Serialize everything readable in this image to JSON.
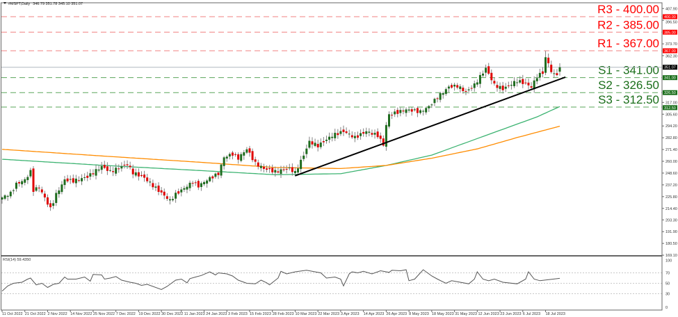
{
  "header": {
    "symbol": "#MSFT,Daily",
    "ohlc": "346.79 351.78 345.10 351.07"
  },
  "chart_data": [
    {
      "type": "candlestick",
      "timeframe": "Daily",
      "ylim": [
        169.1,
        407.9
      ],
      "y_tick_labels": [
        "407.90",
        "396.50",
        "373.70",
        "362.30",
        "317.00",
        "305.60",
        "294.20",
        "282.80",
        "271.40",
        "260.00",
        "248.60",
        "237.20",
        "225.80",
        "214.40",
        "203.30",
        "191.90",
        "180.50",
        "169.10"
      ],
      "x_tick_labels": [
        "11 Oct 2022",
        "21 Oct 2022",
        "2 Nov 2022",
        "14 Nov 2022",
        "25 Nov 2022",
        "7 Dec 2022",
        "19 Dec 2022",
        "30 Dec 2022",
        "11 Jan 2023",
        "24 Jan 2023",
        "3 Feb 2023",
        "15 Feb 2023",
        "28 Feb 2023",
        "10 Mar 2023",
        "22 Mar 2023",
        "3 Apr 2023",
        "14 Apr 2023",
        "26 Apr 2023",
        "8 May 2023",
        "18 May 2023",
        "31 May 2023",
        "12 Jun 2023",
        "23 Jun 2023",
        "6 Jul 2023",
        "18 Jul 2023"
      ],
      "x_tick_dates": [
        "2022-10-11",
        "2022-10-21",
        "2022-11-02",
        "2022-11-14",
        "2022-11-25",
        "2022-12-07",
        "2022-12-19",
        "2022-12-30",
        "2023-01-11",
        "2023-01-24",
        "2023-02-03",
        "2023-02-15",
        "2023-02-28",
        "2023-03-10",
        "2023-03-22",
        "2023-04-03",
        "2023-04-14",
        "2023-04-26",
        "2023-05-08",
        "2023-05-18",
        "2023-05-31",
        "2023-06-12",
        "2023-06-23",
        "2023-07-06",
        "2023-07-18"
      ],
      "approx_close": [
        [
          "2022-10-11",
          225
        ],
        [
          "2022-10-14",
          229
        ],
        [
          "2022-10-18",
          238
        ],
        [
          "2022-10-21",
          242
        ],
        [
          "2022-10-25",
          250
        ],
        [
          "2022-10-26",
          232
        ],
        [
          "2022-10-28",
          235
        ],
        [
          "2022-11-03",
          214
        ],
        [
          "2022-11-07",
          228
        ],
        [
          "2022-11-10",
          242
        ],
        [
          "2022-11-15",
          241
        ],
        [
          "2022-11-22",
          245
        ],
        [
          "2022-11-30",
          255
        ],
        [
          "2022-12-05",
          250
        ],
        [
          "2022-12-13",
          257
        ],
        [
          "2022-12-15",
          249
        ],
        [
          "2022-12-21",
          244
        ],
        [
          "2022-12-28",
          234
        ],
        [
          "2023-01-05",
          222
        ],
        [
          "2023-01-09",
          228
        ],
        [
          "2023-01-18",
          240
        ],
        [
          "2023-01-20",
          236
        ],
        [
          "2023-01-25",
          242
        ],
        [
          "2023-01-31",
          248
        ],
        [
          "2023-02-02",
          264
        ],
        [
          "2023-02-07",
          267
        ],
        [
          "2023-02-09",
          263
        ],
        [
          "2023-02-14",
          272
        ],
        [
          "2023-02-17",
          258
        ],
        [
          "2023-02-23",
          253
        ],
        [
          "2023-03-01",
          250
        ],
        [
          "2023-03-08",
          253
        ],
        [
          "2023-03-10",
          249
        ],
        [
          "2023-03-15",
          266
        ],
        [
          "2023-03-17",
          279
        ],
        [
          "2023-03-22",
          275
        ],
        [
          "2023-03-29",
          285
        ],
        [
          "2023-04-04",
          289
        ],
        [
          "2023-04-11",
          283
        ],
        [
          "2023-04-17",
          289
        ],
        [
          "2023-04-21",
          285
        ],
        [
          "2023-04-25",
          276
        ],
        [
          "2023-04-26",
          295
        ],
        [
          "2023-04-27",
          305
        ],
        [
          "2023-05-05",
          310
        ],
        [
          "2023-05-12",
          308
        ],
        [
          "2023-05-17",
          313
        ],
        [
          "2023-05-22",
          322
        ],
        [
          "2023-05-26",
          332
        ],
        [
          "2023-06-01",
          333
        ],
        [
          "2023-06-06",
          327
        ],
        [
          "2023-06-09",
          334
        ],
        [
          "2023-06-13",
          342
        ],
        [
          "2023-06-15",
          350
        ],
        [
          "2023-06-21",
          334
        ],
        [
          "2023-06-26",
          330
        ],
        [
          "2023-07-03",
          338
        ],
        [
          "2023-07-07",
          335
        ],
        [
          "2023-07-11",
          332
        ],
        [
          "2023-07-13",
          342
        ],
        [
          "2023-07-17",
          346
        ],
        [
          "2023-07-18",
          360
        ],
        [
          "2023-07-19",
          355
        ],
        [
          "2023-07-20",
          347
        ],
        [
          "2023-07-21",
          344
        ],
        [
          "2023-07-24",
          345
        ],
        [
          "2023-07-25",
          351.07
        ]
      ],
      "last_price": "351.07",
      "moving_averages": [
        {
          "color": "#3cb371",
          "values": [
            [
              "2022-10-11",
              262
            ],
            [
              "2022-12-01",
              256
            ],
            [
              "2023-01-23",
              251
            ],
            [
              "2023-03-01",
              247
            ],
            [
              "2023-04-03",
              248
            ],
            [
              "2023-04-26",
              256
            ],
            [
              "2023-05-18",
              266
            ],
            [
              "2023-06-12",
              282
            ],
            [
              "2023-06-28",
              293
            ],
            [
              "2023-07-13",
              303
            ],
            [
              "2023-07-25",
              313
            ]
          ]
        },
        {
          "color": "#ff8c00",
          "values": [
            [
              "2022-10-11",
              271.6
            ],
            [
              "2022-12-01",
              265
            ],
            [
              "2023-01-23",
              259
            ],
            [
              "2023-03-01",
              254
            ],
            [
              "2023-04-03",
              253
            ],
            [
              "2023-04-26",
              256
            ],
            [
              "2023-05-18",
              263
            ],
            [
              "2023-06-12",
              272
            ],
            [
              "2023-07-03",
              283
            ],
            [
              "2023-07-25",
              294
            ]
          ]
        }
      ],
      "trendline": {
        "color": "#000000",
        "from": [
          "2023-03-10",
          246
        ],
        "to": [
          "2023-07-27",
          341.5
        ]
      },
      "levels": [
        {
          "label": "R3 - 400.00",
          "value": 400.0,
          "tag": "400.00",
          "color": "#ff0000",
          "line_color": "#f08080"
        },
        {
          "label": "R2 - 385.00",
          "value": 385.0,
          "tag": "385.00",
          "color": "#ff0000",
          "line_color": "#f08080"
        },
        {
          "label": "R1 - 367.00",
          "value": 367.0,
          "tag": "367.00",
          "color": "#ff0000",
          "line_color": "#f08080"
        },
        {
          "label": "S1 - 341.00",
          "value": 341.0,
          "tag": "341.00",
          "color": "#1a6e1a",
          "line_color": "#5aa55a"
        },
        {
          "label": "S2 - 326.50",
          "value": 326.5,
          "tag": "326.50",
          "color": "#1a6e1a",
          "line_color": "#5aa55a"
        },
        {
          "label": "S3 - 312.50",
          "value": 312.5,
          "tag": "312.50",
          "color": "#1a6e1a",
          "line_color": "#5aa55a"
        }
      ],
      "colors": {
        "up": "#1e6b1e",
        "down": "#e00000",
        "wick": "#808080",
        "last_price_tag": "#000000"
      }
    },
    {
      "type": "line",
      "title": "RSI(14) 59.4350",
      "ylim": [
        0,
        100
      ],
      "y_tick_labels": [
        "100",
        "70",
        "50",
        "30",
        "0"
      ],
      "reference_lines": [
        70,
        50,
        30
      ],
      "values": [
        [
          "2022-10-11",
          35
        ],
        [
          "2022-10-13",
          45
        ],
        [
          "2022-10-17",
          50
        ],
        [
          "2022-10-20",
          52
        ],
        [
          "2022-10-24",
          58
        ],
        [
          "2022-10-25",
          60
        ],
        [
          "2022-10-27",
          47
        ],
        [
          "2022-10-31",
          50
        ],
        [
          "2022-11-02",
          42
        ],
        [
          "2022-11-04",
          48
        ],
        [
          "2022-11-08",
          50
        ],
        [
          "2022-11-10",
          62
        ],
        [
          "2022-11-11",
          58
        ],
        [
          "2022-11-16",
          58
        ],
        [
          "2022-11-21",
          62
        ],
        [
          "2022-11-23",
          54
        ],
        [
          "2022-11-25",
          67
        ],
        [
          "2022-11-30",
          66
        ],
        [
          "2022-12-01",
          58
        ],
        [
          "2022-12-05",
          60
        ],
        [
          "2022-12-07",
          63
        ],
        [
          "2022-12-09",
          56
        ],
        [
          "2022-12-14",
          52
        ],
        [
          "2022-12-16",
          50
        ],
        [
          "2022-12-20",
          46
        ],
        [
          "2022-12-22",
          48
        ],
        [
          "2022-12-30",
          38
        ],
        [
          "2023-01-04",
          44
        ],
        [
          "2023-01-09",
          56
        ],
        [
          "2023-01-11",
          58
        ],
        [
          "2023-01-13",
          51
        ],
        [
          "2023-01-17",
          59
        ],
        [
          "2023-01-19",
          62
        ],
        [
          "2023-01-23",
          65
        ],
        [
          "2023-01-26",
          72
        ],
        [
          "2023-01-30",
          66
        ],
        [
          "2023-01-31",
          70
        ],
        [
          "2023-02-03",
          68
        ],
        [
          "2023-02-07",
          64
        ],
        [
          "2023-02-09",
          56
        ],
        [
          "2023-02-14",
          50
        ],
        [
          "2023-02-17",
          49
        ],
        [
          "2023-02-22",
          56
        ],
        [
          "2023-02-24",
          51
        ],
        [
          "2023-02-27",
          47
        ],
        [
          "2023-03-02",
          60
        ],
        [
          "2023-03-03",
          73
        ],
        [
          "2023-03-07",
          68
        ],
        [
          "2023-03-10",
          72
        ],
        [
          "2023-03-16",
          75
        ],
        [
          "2023-03-21",
          72
        ],
        [
          "2023-03-23",
          70
        ],
        [
          "2023-03-27",
          60
        ],
        [
          "2023-03-30",
          62
        ],
        [
          "2023-04-03",
          58
        ],
        [
          "2023-04-04",
          45
        ],
        [
          "2023-04-06",
          68
        ],
        [
          "2023-04-10",
          72
        ],
        [
          "2023-04-12",
          70
        ],
        [
          "2023-04-14",
          73
        ],
        [
          "2023-04-19",
          68
        ],
        [
          "2023-04-24",
          74
        ],
        [
          "2023-04-27",
          71
        ],
        [
          "2023-04-28",
          75
        ],
        [
          "2023-05-03",
          74
        ],
        [
          "2023-05-05",
          76
        ],
        [
          "2023-05-08",
          55
        ],
        [
          "2023-05-10",
          58
        ],
        [
          "2023-05-15",
          76
        ],
        [
          "2023-05-18",
          64
        ],
        [
          "2023-05-22",
          58
        ],
        [
          "2023-05-25",
          50
        ],
        [
          "2023-05-30",
          55
        ],
        [
          "2023-06-02",
          52
        ],
        [
          "2023-06-07",
          49
        ],
        [
          "2023-06-09",
          58
        ],
        [
          "2023-06-12",
          72
        ],
        [
          "2023-06-14",
          58
        ],
        [
          "2023-06-16",
          55
        ],
        [
          "2023-06-21",
          58
        ],
        [
          "2023-06-26",
          52
        ],
        [
          "2023-07-03",
          49
        ],
        [
          "2023-07-07",
          58
        ],
        [
          "2023-07-10",
          72
        ],
        [
          "2023-07-12",
          58
        ],
        [
          "2023-07-14",
          55
        ],
        [
          "2023-07-25",
          59.435
        ]
      ],
      "color": "#555555"
    }
  ]
}
